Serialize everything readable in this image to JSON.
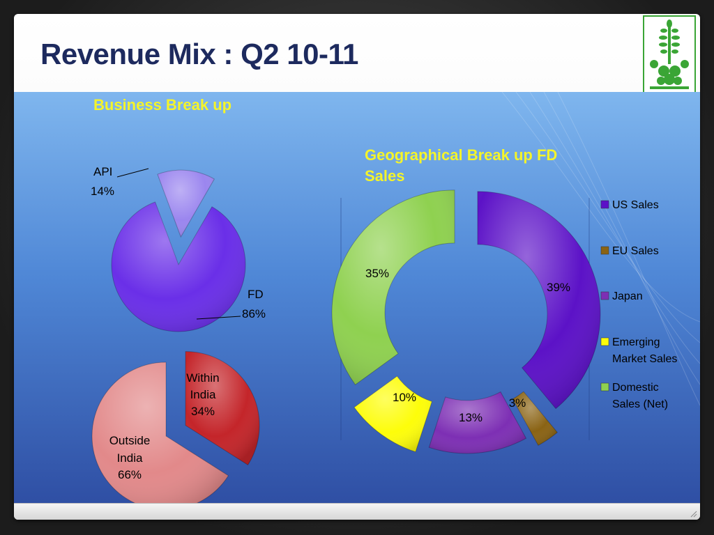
{
  "slide": {
    "title": "Revenue Mix : Q2 10-11"
  },
  "colors": {
    "title": "#1d2a5e",
    "chart_title": "#f4f42a",
    "logo_green": "#3aa535"
  },
  "chart_data": [
    {
      "type": "pie",
      "title": "Business Break up",
      "series": [
        {
          "label": "API",
          "value": 14,
          "display": "14%",
          "color": "#9b86ef"
        },
        {
          "label": "FD",
          "value": 86,
          "display": "86%",
          "color": "#6a2fe8"
        }
      ]
    },
    {
      "type": "pie",
      "title": "",
      "series": [
        {
          "label": "Within India",
          "lines": [
            "Within",
            "India"
          ],
          "value": 34,
          "display": "34%",
          "color": "#c4252a"
        },
        {
          "label": "Outside India",
          "lines": [
            "Outside",
            "India"
          ],
          "value": 66,
          "display": "66%",
          "color": "#e2898a"
        }
      ]
    },
    {
      "type": "donut",
      "title": "Geographical Break up FD Sales",
      "title_lines": [
        "Geographical Break up FD",
        "Sales"
      ],
      "series": [
        {
          "label": "US Sales",
          "legend_lines": [
            "US Sales"
          ],
          "value": 39,
          "display": "39%",
          "color": "#5c12c7"
        },
        {
          "label": "EU Sales",
          "legend_lines": [
            "EU Sales"
          ],
          "value": 3,
          "display": "3%",
          "color": "#8a6314"
        },
        {
          "label": "Japan",
          "legend_lines": [
            "Japan"
          ],
          "value": 13,
          "display": "13%",
          "color": "#7d2fb4"
        },
        {
          "label": "Emerging Market Sales",
          "legend_lines": [
            "Emerging",
            "Market Sales"
          ],
          "value": 10,
          "display": "10%",
          "color": "#fdfd0a"
        },
        {
          "label": "Domestic Sales (Net)",
          "legend_lines": [
            "Domestic",
            "Sales (Net)"
          ],
          "value": 35,
          "display": "35%",
          "color": "#8fd150"
        }
      ],
      "legend_placement": "right"
    }
  ]
}
